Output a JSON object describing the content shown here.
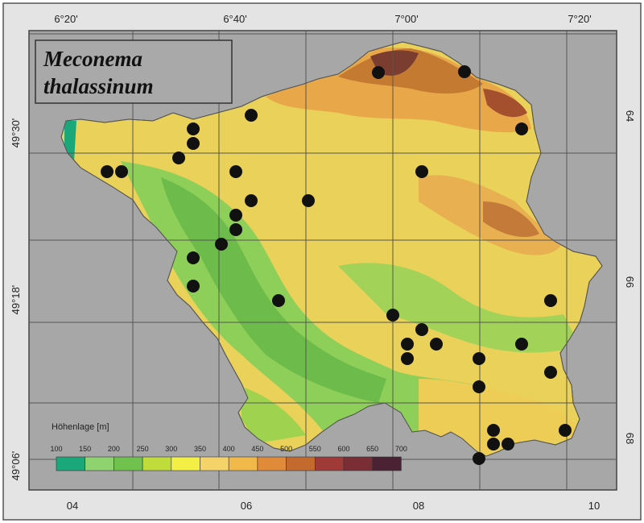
{
  "map": {
    "title_line1": "Meconema",
    "title_line2": "thalassinum",
    "top_labels": [
      "6°20'",
      "6°40'",
      "7°00'",
      "7°20'"
    ],
    "left_labels": [
      "49°30'",
      "49°18'",
      "49°06'"
    ],
    "bottom_labels": [
      "04",
      "06",
      "08",
      "10"
    ],
    "right_labels": [
      "64",
      "66",
      "68"
    ],
    "legend": {
      "title": "Höhenlage [m]",
      "ticks": [
        "100",
        "150",
        "200",
        "250",
        "300",
        "350",
        "400",
        "450",
        "500",
        "550",
        "600",
        "650",
        "700"
      ],
      "colors": [
        "#1aa87a",
        "#8ed36f",
        "#6fc24e",
        "#bfdc3b",
        "#f3ef45",
        "#f4d46a",
        "#f0b94a",
        "#e08a3a",
        "#c46a2e",
        "#a03a38",
        "#7b2d36",
        "#4a2233"
      ]
    },
    "occurrence_count": 36
  }
}
